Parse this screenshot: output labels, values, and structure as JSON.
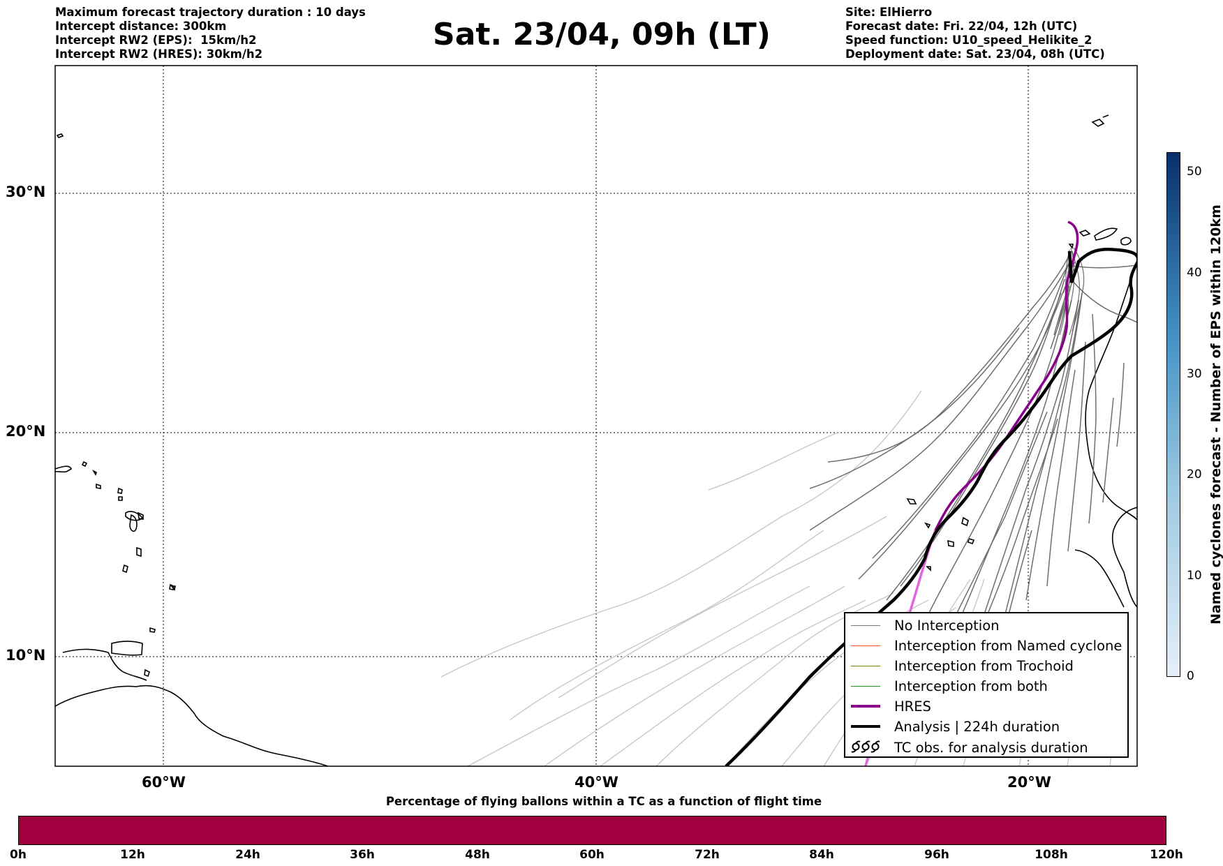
{
  "header": {
    "left_lines": [
      "Maximum forecast trajectory duration : 10 days",
      "Intercept distance: 300km",
      "Intercept RW2 (EPS):  15km/h2",
      "Intercept RW2 (HRES): 30km/h2"
    ],
    "title": "Sat. 23/04, 09h (LT)",
    "right_lines": [
      "Site: ElHierro",
      "Forecast date: Fri. 22/04, 12h (UTC)",
      "Speed function: U10_speed_Helikite_2",
      "Deployment date: Sat. 23/04, 08h (UTC)"
    ]
  },
  "map": {
    "lat_labels": [
      "30°N",
      "20°N",
      "10°N"
    ],
    "lon_labels": [
      "60°W",
      "40°W",
      "20°W"
    ],
    "colors": {
      "no_interception": "#777777",
      "no_interception_faint": "#c8c8c8",
      "named_cyclone": "#ff5a1a",
      "trochoid": "#808000",
      "both": "#228b22",
      "hres": "#8b008b",
      "hres_faint": "#e066e0",
      "analysis": "#000000"
    }
  },
  "legend": {
    "items": [
      {
        "label": "No Interception",
        "symbol": "thin-line",
        "color": "#777777"
      },
      {
        "label": "Interception from Named cyclone",
        "symbol": "thin-line",
        "color": "#ff5a1a"
      },
      {
        "label": "Interception from Trochoid",
        "symbol": "thin-line",
        "color": "#808000"
      },
      {
        "label": "Interception from both",
        "symbol": "thin-line",
        "color": "#228b22"
      },
      {
        "label": "HRES",
        "symbol": "thick-line",
        "color": "#8b008b"
      },
      {
        "label": "Analysis | 224h duration",
        "symbol": "thick-line",
        "color": "#000000"
      },
      {
        "label": "TC obs. for analysis duration",
        "symbol": "cyclone-icons",
        "color": "#000000"
      }
    ]
  },
  "colorbar_right": {
    "label": "Named cyclones forecast - Number of EPS within 120km",
    "ticks": [
      "50",
      "40",
      "30",
      "20",
      "10",
      "0"
    ],
    "range": [
      0,
      52
    ],
    "color_low": "#e6eff9",
    "color_high": "#08306b"
  },
  "colorbar_bottom": {
    "title": "Percentage of flying ballons within a TC as a function of flight time",
    "ticks": [
      "0h",
      "12h",
      "24h",
      "36h",
      "48h",
      "60h",
      "72h",
      "84h",
      "96h",
      "108h",
      "120h"
    ],
    "color": "#a0003d"
  }
}
